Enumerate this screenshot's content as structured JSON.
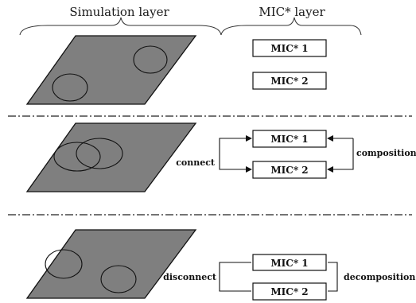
{
  "headers": {
    "simulation_layer": "Simulation layer",
    "mic_layer": "MIC* layer"
  },
  "panels": [
    {
      "mic_boxes": [
        "MIC* 1",
        "MIC* 2"
      ]
    },
    {
      "mic_boxes": [
        "MIC* 1",
        "MIC* 2"
      ],
      "left_label": "connect",
      "right_label": "composition"
    },
    {
      "mic_boxes": [
        "MIC* 1",
        "MIC* 2"
      ],
      "left_label": "disconnect",
      "right_label": "decomposition"
    }
  ]
}
